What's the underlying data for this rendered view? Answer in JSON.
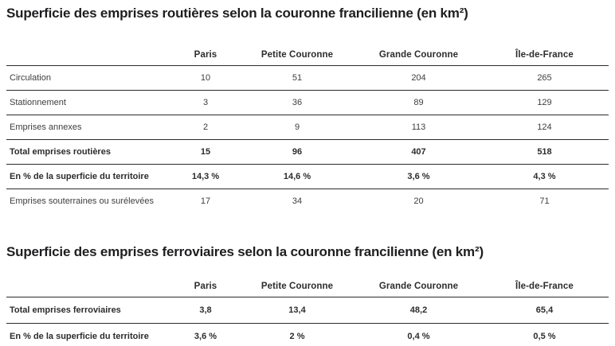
{
  "colors": {
    "background": "#ffffff",
    "title_text": "#1e1e20",
    "body_text": "#3e3e40",
    "bold_text": "#2c2c2e",
    "rule_line": "#2b2b2d"
  },
  "tables": [
    {
      "title": "Superficie des emprises routières selon la couronne francilienne (en km²)",
      "columns": [
        "Paris",
        "Petite Couronne",
        "Grande Couronne",
        "Île-de-France"
      ],
      "rows": [
        {
          "label": "Circulation",
          "values": [
            "10",
            "51",
            "204",
            "265"
          ],
          "bold": false
        },
        {
          "label": "Stationnement",
          "values": [
            "3",
            "36",
            "89",
            "129"
          ],
          "bold": false
        },
        {
          "label": "Emprises annexes",
          "values": [
            "2",
            "9",
            "113",
            "124"
          ],
          "bold": false
        },
        {
          "label": "Total emprises routières",
          "values": [
            "15",
            "96",
            "407",
            "518"
          ],
          "bold": true
        },
        {
          "label": "En % de la superficie du territoire",
          "values": [
            "14,3 %",
            "14,6 %",
            "3,6 %",
            "4,3 %"
          ],
          "bold": true
        },
        {
          "label": "Emprises souterraines ou surélevées",
          "values": [
            "17",
            "34",
            "20",
            "71"
          ],
          "bold": false
        }
      ]
    },
    {
      "title": "Superficie des emprises ferroviaires selon la couronne francilienne (en km²)",
      "columns": [
        "Paris",
        "Petite Couronne",
        "Grande Couronne",
        "Île-de-France"
      ],
      "rows": [
        {
          "label": "Total emprises ferroviaires",
          "values": [
            "3,8",
            "13,4",
            "48,2",
            "65,4"
          ],
          "bold": true
        },
        {
          "label": "En % de la superficie du territoire",
          "values": [
            "3,6 %",
            "2 %",
            "0,4 %",
            "0,5 %"
          ],
          "bold": true
        }
      ]
    }
  ]
}
